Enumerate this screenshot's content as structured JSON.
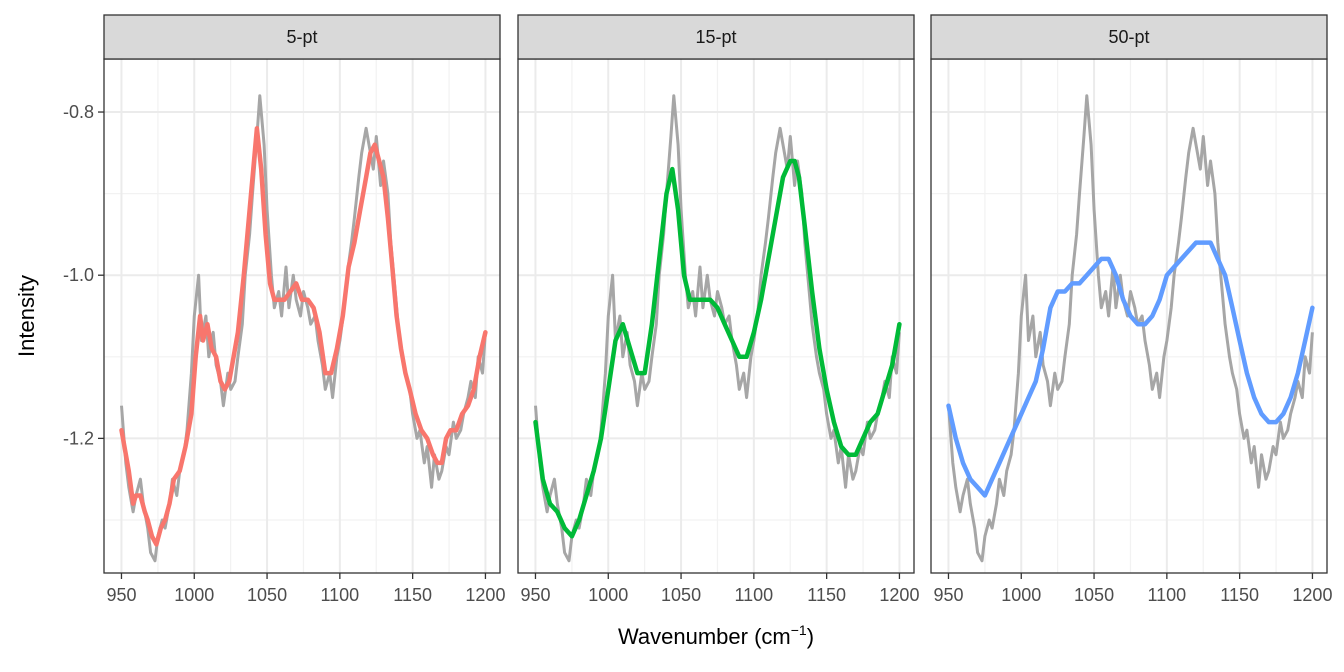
{
  "chart_data": {
    "type": "line",
    "xlabel_main": "Wavenumber (cm",
    "xlabel_sup": "−1",
    "xlabel_close": ")",
    "ylabel": "Intensity",
    "xlim": [
      938,
      1210
    ],
    "ylim": [
      -1.365,
      -0.735
    ],
    "x_ticks": [
      950,
      1000,
      1050,
      1100,
      1150,
      1200
    ],
    "y_ticks": [
      -1.2,
      -1.0,
      -0.8
    ],
    "y_tick_labels": [
      "-1.2",
      "-1.0",
      "-0.8"
    ],
    "grid": true,
    "raw_color": "#a6a6a6",
    "raw": {
      "x": [
        950,
        953,
        955,
        958,
        960,
        963,
        965,
        968,
        970,
        973,
        975,
        978,
        980,
        983,
        985,
        988,
        990,
        993,
        995,
        998,
        1000,
        1003,
        1005,
        1008,
        1010,
        1013,
        1015,
        1018,
        1020,
        1023,
        1025,
        1028,
        1030,
        1033,
        1035,
        1038,
        1040,
        1043,
        1045,
        1048,
        1050,
        1053,
        1055,
        1058,
        1060,
        1063,
        1065,
        1068,
        1070,
        1073,
        1075,
        1078,
        1080,
        1083,
        1085,
        1088,
        1090,
        1093,
        1095,
        1098,
        1100,
        1103,
        1105,
        1108,
        1110,
        1113,
        1115,
        1118,
        1120,
        1123,
        1125,
        1128,
        1130,
        1133,
        1135,
        1138,
        1140,
        1143,
        1145,
        1148,
        1150,
        1153,
        1155,
        1158,
        1160,
        1163,
        1165,
        1168,
        1170,
        1173,
        1175,
        1178,
        1180,
        1183,
        1185,
        1188,
        1190,
        1193,
        1195,
        1198,
        1200
      ],
      "y": [
        -1.16,
        -1.23,
        -1.26,
        -1.29,
        -1.27,
        -1.25,
        -1.28,
        -1.31,
        -1.34,
        -1.35,
        -1.32,
        -1.3,
        -1.31,
        -1.28,
        -1.25,
        -1.27,
        -1.24,
        -1.22,
        -1.19,
        -1.12,
        -1.05,
        -1.0,
        -1.08,
        -1.05,
        -1.1,
        -1.07,
        -1.11,
        -1.13,
        -1.16,
        -1.12,
        -1.14,
        -1.13,
        -1.1,
        -1.06,
        -1.0,
        -0.95,
        -0.9,
        -0.83,
        -0.78,
        -0.84,
        -0.92,
        -1.0,
        -1.04,
        -1.02,
        -1.05,
        -0.99,
        -1.04,
        -1.0,
        -1.03,
        -1.05,
        -1.02,
        -1.04,
        -1.06,
        -1.05,
        -1.08,
        -1.11,
        -1.14,
        -1.12,
        -1.15,
        -1.1,
        -1.08,
        -1.04,
        -1.0,
        -0.96,
        -0.93,
        -0.88,
        -0.85,
        -0.82,
        -0.84,
        -0.87,
        -0.83,
        -0.89,
        -0.86,
        -0.9,
        -0.96,
        -1.02,
        -1.06,
        -1.1,
        -1.12,
        -1.14,
        -1.17,
        -1.2,
        -1.19,
        -1.23,
        -1.21,
        -1.26,
        -1.22,
        -1.25,
        -1.24,
        -1.21,
        -1.22,
        -1.18,
        -1.2,
        -1.19,
        -1.17,
        -1.15,
        -1.13,
        -1.15,
        -1.1,
        -1.12,
        -1.07
      ]
    },
    "panels": [
      {
        "label": "5-pt",
        "color": "#f8766d",
        "x": [
          950,
          955,
          958,
          960,
          963,
          966,
          968,
          971,
          974,
          977,
          980,
          983,
          986,
          990,
          994,
          998,
          1001,
          1004,
          1006,
          1009,
          1012,
          1015,
          1018,
          1021,
          1024,
          1027,
          1030,
          1034,
          1038,
          1041,
          1043,
          1046,
          1049,
          1052,
          1055,
          1058,
          1062,
          1066,
          1070,
          1074,
          1078,
          1082,
          1086,
          1090,
          1094,
          1098,
          1102,
          1106,
          1110,
          1114,
          1118,
          1121,
          1124,
          1127,
          1130,
          1133,
          1136,
          1139,
          1142,
          1145,
          1148,
          1152,
          1156,
          1160,
          1164,
          1167,
          1170,
          1173,
          1176,
          1180,
          1184,
          1188,
          1192,
          1196,
          1200
        ],
        "y": [
          -1.19,
          -1.24,
          -1.28,
          -1.27,
          -1.27,
          -1.29,
          -1.3,
          -1.32,
          -1.33,
          -1.31,
          -1.3,
          -1.28,
          -1.25,
          -1.24,
          -1.21,
          -1.17,
          -1.1,
          -1.05,
          -1.08,
          -1.06,
          -1.09,
          -1.1,
          -1.13,
          -1.14,
          -1.13,
          -1.1,
          -1.07,
          -1.0,
          -0.92,
          -0.86,
          -0.82,
          -0.87,
          -0.95,
          -1.01,
          -1.03,
          -1.03,
          -1.03,
          -1.02,
          -1.01,
          -1.03,
          -1.03,
          -1.04,
          -1.07,
          -1.12,
          -1.12,
          -1.09,
          -1.05,
          -0.99,
          -0.96,
          -0.92,
          -0.88,
          -0.85,
          -0.84,
          -0.86,
          -0.88,
          -0.93,
          -0.99,
          -1.05,
          -1.09,
          -1.12,
          -1.14,
          -1.17,
          -1.19,
          -1.2,
          -1.22,
          -1.23,
          -1.23,
          -1.2,
          -1.19,
          -1.19,
          -1.17,
          -1.16,
          -1.14,
          -1.1,
          -1.07
        ]
      },
      {
        "label": "15-pt",
        "color": "#00ba38",
        "x": [
          950,
          955,
          960,
          965,
          970,
          975,
          980,
          985,
          990,
          995,
          1000,
          1005,
          1010,
          1015,
          1020,
          1025,
          1030,
          1035,
          1040,
          1044,
          1048,
          1052,
          1056,
          1060,
          1065,
          1070,
          1075,
          1080,
          1085,
          1090,
          1095,
          1100,
          1105,
          1110,
          1115,
          1120,
          1125,
          1128,
          1131,
          1135,
          1140,
          1145,
          1150,
          1155,
          1160,
          1165,
          1170,
          1175,
          1180,
          1185,
          1190,
          1195,
          1200
        ],
        "y": [
          -1.18,
          -1.25,
          -1.28,
          -1.29,
          -1.31,
          -1.32,
          -1.3,
          -1.27,
          -1.24,
          -1.2,
          -1.14,
          -1.08,
          -1.06,
          -1.09,
          -1.12,
          -1.12,
          -1.06,
          -0.98,
          -0.9,
          -0.87,
          -0.92,
          -1.0,
          -1.03,
          -1.03,
          -1.03,
          -1.03,
          -1.04,
          -1.06,
          -1.08,
          -1.1,
          -1.1,
          -1.07,
          -1.03,
          -0.98,
          -0.93,
          -0.88,
          -0.86,
          -0.86,
          -0.88,
          -0.94,
          -1.02,
          -1.09,
          -1.14,
          -1.18,
          -1.21,
          -1.22,
          -1.22,
          -1.2,
          -1.18,
          -1.17,
          -1.14,
          -1.11,
          -1.06
        ]
      },
      {
        "label": "50-pt",
        "color": "#619cff",
        "x": [
          950,
          955,
          960,
          965,
          970,
          975,
          980,
          985,
          990,
          995,
          1000,
          1005,
          1010,
          1015,
          1020,
          1025,
          1030,
          1035,
          1040,
          1045,
          1050,
          1055,
          1060,
          1065,
          1070,
          1075,
          1080,
          1085,
          1090,
          1095,
          1100,
          1105,
          1110,
          1115,
          1120,
          1125,
          1130,
          1135,
          1140,
          1145,
          1150,
          1155,
          1160,
          1165,
          1170,
          1175,
          1180,
          1185,
          1190,
          1195,
          1200
        ],
        "y": [
          -1.16,
          -1.2,
          -1.23,
          -1.25,
          -1.26,
          -1.27,
          -1.25,
          -1.23,
          -1.21,
          -1.19,
          -1.17,
          -1.15,
          -1.13,
          -1.09,
          -1.04,
          -1.02,
          -1.02,
          -1.01,
          -1.01,
          -1.0,
          -0.99,
          -0.98,
          -0.98,
          -1.0,
          -1.03,
          -1.05,
          -1.06,
          -1.06,
          -1.05,
          -1.03,
          -1.0,
          -0.99,
          -0.98,
          -0.97,
          -0.96,
          -0.96,
          -0.96,
          -0.98,
          -1.0,
          -1.04,
          -1.08,
          -1.12,
          -1.15,
          -1.17,
          -1.18,
          -1.18,
          -1.17,
          -1.15,
          -1.12,
          -1.08,
          -1.04
        ]
      }
    ]
  }
}
